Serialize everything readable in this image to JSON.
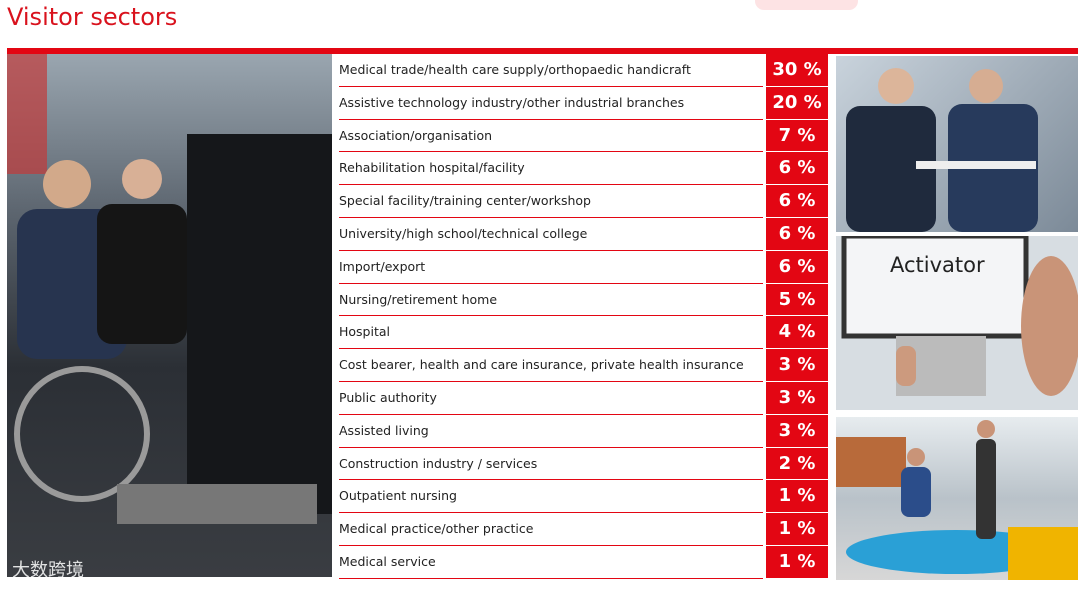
{
  "header": {
    "title": "Visitor sectors"
  },
  "table": {
    "rows": [
      [
        "Medical trade/health care supply/orthopaedic handicraft",
        "30 %"
      ],
      [
        "Assistive technology industry/other industrial branches",
        "20 %"
      ],
      [
        "Association/organisation",
        "7 %"
      ],
      [
        "Rehabilitation hospital/facility",
        "6 %"
      ],
      [
        "Special facility/training center/workshop",
        "6 %"
      ],
      [
        "University/high school/technical college",
        "6 %"
      ],
      [
        "Import/export",
        "6 %"
      ],
      [
        "Nursing/retirement home",
        "5 %"
      ],
      [
        "Hospital",
        "4 %"
      ],
      [
        "Cost bearer, health and care insurance, private health insurance",
        "3 %"
      ],
      [
        "Public authority",
        "3 %"
      ],
      [
        "Assisted living",
        "3 %"
      ],
      [
        "Construction industry / services",
        "2 %"
      ],
      [
        "Outpatient nursing",
        "1 %"
      ],
      [
        "Medical practice/other practice",
        "1 %"
      ],
      [
        "Medical service",
        "1 %"
      ]
    ]
  },
  "photos": {
    "screen_text": "Activator"
  },
  "watermark": "大数跨境"
}
